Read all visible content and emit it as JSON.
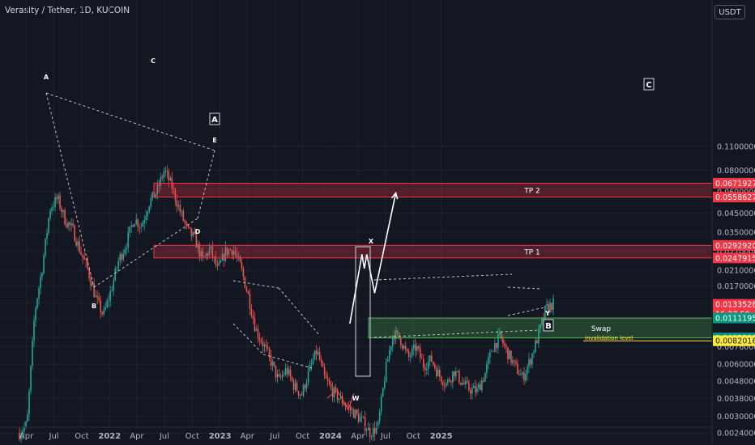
{
  "header": {
    "title": "Verasity / Tether, 1D, KUCOIN",
    "currency_button": "USDT"
  },
  "colors": {
    "background": "#131722",
    "up": "#26a69a",
    "down": "#ef5350",
    "tp_zone": "#ff4d4d",
    "swap_zone": "#4caf50",
    "label_red": "#f23645",
    "label_green": "#089981",
    "label_yellow": "#ffeb3b",
    "grid": "#1e222d"
  },
  "chart_data": {
    "type": "candlestick",
    "scale": "log",
    "price_axis_ticks": [
      0.11,
      0.08,
      0.06,
      0.045,
      0.035,
      0.027,
      0.021,
      0.017,
      0.0136,
      0.011,
      0.0086,
      0.0076,
      0.006,
      0.0048,
      0.0038,
      0.003,
      0.0024
    ],
    "time_axis_ticks": [
      "Apr",
      "Jul",
      "Oct",
      "2022",
      "Apr",
      "Jul",
      "Oct",
      "2023",
      "Apr",
      "Jul",
      "Oct",
      "2024",
      "Apr",
      "Jul",
      "Oct",
      "2025"
    ],
    "price_labels": [
      {
        "value": "0.06719272",
        "kind": "red"
      },
      {
        "value": "0.05586276",
        "kind": "red"
      },
      {
        "value": "0.02929202",
        "kind": "red"
      },
      {
        "value": "0.02479153",
        "kind": "red"
      },
      {
        "value": "0.01335284",
        "kind": "red",
        "sub": "16:27:50"
      },
      {
        "value": "0.01111953",
        "kind": "green"
      },
      {
        "value": "0.00852211",
        "kind": "green"
      },
      {
        "value": "0.00820169",
        "kind": "yellow"
      }
    ],
    "zones": [
      {
        "label": "TP 2",
        "low": 0.05586276,
        "high": 0.06719272
      },
      {
        "label": "TP 1",
        "low": 0.02479153,
        "high": 0.02929202
      },
      {
        "label": "Swap",
        "low": 0.00852211,
        "high": 0.01111953
      }
    ],
    "invalidation": {
      "label": "invalidation level",
      "value": 0.00820169
    },
    "wave_labels": [
      "A",
      "B",
      "C",
      "D",
      "E",
      "A",
      "X",
      "W",
      "Y",
      "B",
      "C"
    ],
    "price_path": [
      [
        0.0024,
        0.0027
      ],
      [
        0.0027,
        0.012
      ],
      [
        0.012,
        0.022
      ],
      [
        0.022,
        0.048
      ],
      [
        0.048,
        0.055
      ],
      [
        0.055,
        0.041
      ],
      [
        0.041,
        0.036
      ],
      [
        0.036,
        0.027
      ],
      [
        0.027,
        0.021
      ],
      [
        0.021,
        0.0145
      ],
      [
        0.0145,
        0.0115
      ],
      [
        0.0115,
        0.016
      ],
      [
        0.016,
        0.024
      ],
      [
        0.024,
        0.03
      ],
      [
        0.03,
        0.042
      ],
      [
        0.042,
        0.038
      ],
      [
        0.038,
        0.052
      ],
      [
        0.052,
        0.06
      ],
      [
        0.06,
        0.08
      ],
      [
        0.08,
        0.064
      ],
      [
        0.064,
        0.047
      ],
      [
        0.047,
        0.036
      ],
      [
        0.036,
        0.032
      ],
      [
        0.032,
        0.024
      ],
      [
        0.024,
        0.028
      ],
      [
        0.028,
        0.021
      ],
      [
        0.021,
        0.027
      ],
      [
        0.027,
        0.028
      ],
      [
        0.028,
        0.022
      ],
      [
        0.022,
        0.015
      ],
      [
        0.015,
        0.0095
      ],
      [
        0.0095,
        0.0078
      ],
      [
        0.0078,
        0.0062
      ],
      [
        0.0062,
        0.0048
      ],
      [
        0.0048,
        0.0056
      ],
      [
        0.0056,
        0.0045
      ],
      [
        0.0045,
        0.004
      ],
      [
        0.004,
        0.0055
      ],
      [
        0.0055,
        0.0072
      ],
      [
        0.0072,
        0.005
      ],
      [
        0.005,
        0.0042
      ],
      [
        0.0042,
        0.0038
      ],
      [
        0.0038,
        0.0034
      ],
      [
        0.0034,
        0.0031
      ],
      [
        0.0031,
        0.0028
      ],
      [
        0.0028,
        0.0024
      ],
      [
        0.0024,
        0.0026
      ],
      [
        0.0026,
        0.0055
      ],
      [
        0.0055,
        0.0092
      ],
      [
        0.0092,
        0.0083
      ],
      [
        0.0083,
        0.0065
      ],
      [
        0.0065,
        0.0076
      ],
      [
        0.0076,
        0.0059
      ],
      [
        0.0059,
        0.0064
      ],
      [
        0.0064,
        0.0052
      ],
      [
        0.0052,
        0.0046
      ],
      [
        0.0046,
        0.0055
      ],
      [
        0.0055,
        0.0047
      ],
      [
        0.0047,
        0.0043
      ],
      [
        0.0043,
        0.0042
      ],
      [
        0.0042,
        0.0052
      ],
      [
        0.0052,
        0.0075
      ],
      [
        0.0075,
        0.0086
      ],
      [
        0.0086,
        0.007
      ],
      [
        0.007,
        0.0058
      ],
      [
        0.0058,
        0.005
      ],
      [
        0.005,
        0.0064
      ],
      [
        0.0064,
        0.0087
      ],
      [
        0.0087,
        0.0125
      ],
      [
        0.0125,
        0.0135
      ]
    ],
    "projection": [
      [
        0.0103,
        "2024-03-05"
      ],
      [
        0.026,
        "2024-04-14"
      ],
      [
        0.0215,
        "2024-04-22"
      ],
      [
        0.026,
        "2024-04-30"
      ],
      [
        0.0155,
        "2024-05-26"
      ],
      [
        0.059,
        "2024-08-04"
      ]
    ]
  }
}
